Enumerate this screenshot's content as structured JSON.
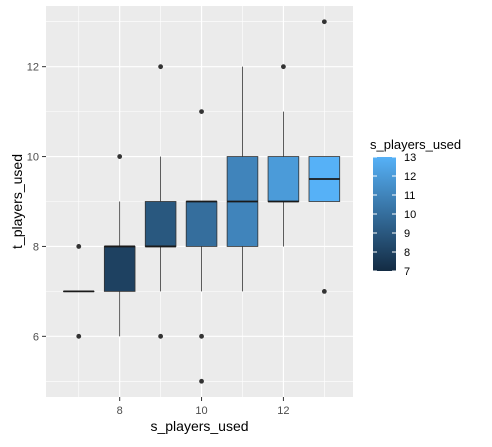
{
  "chart_data": {
    "type": "boxplot",
    "xlabel": "s_players_used",
    "ylabel": "t_players_used",
    "xlim": [
      6.2,
      13.7
    ],
    "ylim": [
      4.65,
      13.35
    ],
    "x_ticks": [
      8,
      10,
      12
    ],
    "x_tick_labels": [
      "8",
      "10",
      "12"
    ],
    "y_ticks": [
      6,
      8,
      10,
      12
    ],
    "y_tick_labels": [
      "6",
      "8",
      "10",
      "12"
    ],
    "grid": true,
    "legend": {
      "title": "s_players_used",
      "placement": "right",
      "type": "colorbar",
      "range": [
        7,
        13
      ],
      "ticks": [
        7,
        8,
        9,
        10,
        11,
        12,
        13
      ],
      "tick_labels": [
        "7",
        "8",
        "9",
        "10",
        "11",
        "12",
        "13"
      ],
      "color_low": "#132b43",
      "color_high": "#56b1f7"
    },
    "boxes": [
      {
        "x": 7,
        "whisker_low": 7,
        "q1": 7,
        "median": 7,
        "q3": 7,
        "whisker_high": 7,
        "outliers": [
          6,
          8
        ]
      },
      {
        "x": 8,
        "whisker_low": 6,
        "q1": 7,
        "median": 8,
        "q3": 8,
        "whisker_high": 9,
        "outliers": [
          10
        ]
      },
      {
        "x": 9,
        "whisker_low": 7,
        "q1": 8,
        "median": 8,
        "q3": 9,
        "whisker_high": 10,
        "outliers": [
          6,
          12
        ]
      },
      {
        "x": 10,
        "whisker_low": 7,
        "q1": 8,
        "median": 9,
        "q3": 9,
        "whisker_high": 9,
        "outliers": [
          5,
          6,
          11
        ]
      },
      {
        "x": 11,
        "whisker_low": 7,
        "q1": 8,
        "median": 9,
        "q3": 10,
        "whisker_high": 12,
        "outliers": []
      },
      {
        "x": 12,
        "whisker_low": 8,
        "q1": 9,
        "median": 9,
        "q3": 10,
        "whisker_high": 11,
        "outliers": [
          12
        ]
      },
      {
        "x": 13,
        "whisker_low": 9,
        "q1": 9,
        "median": 9.5,
        "q3": 10,
        "whisker_high": 10,
        "outliers": [
          7,
          13
        ]
      }
    ]
  }
}
